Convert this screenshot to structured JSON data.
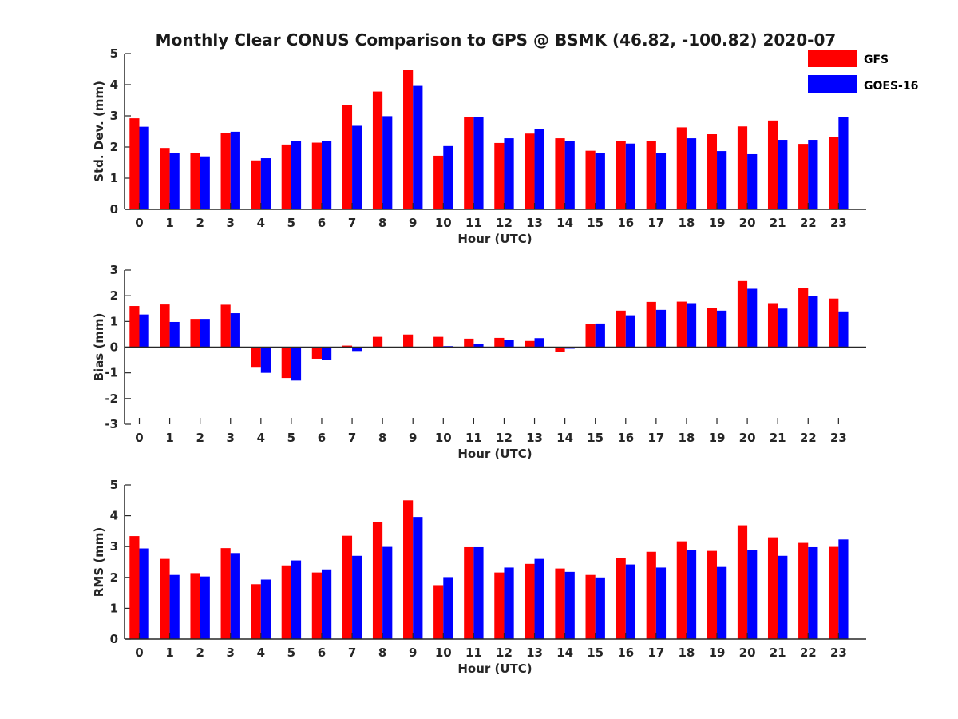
{
  "chart_data": [
    {
      "type": "bar",
      "title": "Monthly Clear CONUS Comparison to GPS @ BSMK (46.82, -100.82) 2020-07",
      "xlabel": "Hour (UTC)",
      "ylabel": "Std. Dev. (mm)",
      "ylim": [
        0,
        5
      ],
      "yticks": [
        "0",
        "1",
        "2",
        "3",
        "4",
        "5"
      ],
      "categories": [
        "0",
        "1",
        "2",
        "3",
        "4",
        "5",
        "6",
        "7",
        "8",
        "9",
        "10",
        "11",
        "12",
        "13",
        "14",
        "15",
        "16",
        "17",
        "18",
        "19",
        "20",
        "21",
        "22",
        "23"
      ],
      "series": [
        {
          "name": "GFS",
          "color": "#ff0000",
          "values": [
            2.92,
            1.97,
            1.8,
            2.45,
            1.57,
            2.08,
            2.14,
            3.35,
            3.78,
            4.47,
            1.72,
            2.97,
            2.13,
            2.43,
            2.28,
            1.88,
            2.2,
            2.2,
            2.63,
            2.41,
            2.66,
            2.85,
            2.1,
            2.31
          ]
        },
        {
          "name": "GOES-16",
          "color": "#0000ff",
          "values": [
            2.65,
            1.82,
            1.7,
            2.49,
            1.64,
            2.2,
            2.2,
            2.68,
            2.99,
            3.96,
            2.03,
            2.97,
            2.28,
            2.58,
            2.18,
            1.8,
            2.11,
            1.8,
            2.28,
            1.87,
            1.77,
            2.23,
            2.23,
            2.95
          ]
        }
      ]
    },
    {
      "type": "bar",
      "xlabel": "Hour (UTC)",
      "ylabel": "Bias (mm)",
      "ylim": [
        -3,
        3
      ],
      "yticks": [
        "-3",
        "-2",
        "-1",
        "0",
        "1",
        "2",
        "3"
      ],
      "categories": [
        "0",
        "1",
        "2",
        "3",
        "4",
        "5",
        "6",
        "7",
        "8",
        "9",
        "10",
        "11",
        "12",
        "13",
        "14",
        "15",
        "16",
        "17",
        "18",
        "19",
        "20",
        "21",
        "22",
        "23"
      ],
      "series": [
        {
          "name": "GFS",
          "color": "#ff0000",
          "values": [
            1.6,
            1.66,
            1.1,
            1.65,
            -0.8,
            -1.2,
            -0.45,
            0.06,
            0.4,
            0.49,
            0.4,
            0.33,
            0.36,
            0.24,
            -0.2,
            0.89,
            1.42,
            1.76,
            1.77,
            1.53,
            2.57,
            1.71,
            2.29,
            1.89
          ]
        },
        {
          "name": "GOES-16",
          "color": "#0000ff",
          "values": [
            1.27,
            0.98,
            1.1,
            1.32,
            -1.0,
            -1.3,
            -0.5,
            -0.15,
            0.0,
            -0.04,
            0.04,
            0.12,
            0.27,
            0.35,
            -0.06,
            0.92,
            1.24,
            1.45,
            1.71,
            1.42,
            2.27,
            1.5,
            2.0,
            1.39
          ]
        }
      ]
    },
    {
      "type": "bar",
      "xlabel": "Hour (UTC)",
      "ylabel": "RMS (mm)",
      "ylim": [
        0,
        5
      ],
      "yticks": [
        "0",
        "1",
        "2",
        "3",
        "4",
        "5"
      ],
      "categories": [
        "0",
        "1",
        "2",
        "3",
        "4",
        "5",
        "6",
        "7",
        "8",
        "9",
        "10",
        "11",
        "12",
        "13",
        "14",
        "15",
        "16",
        "17",
        "18",
        "19",
        "20",
        "21",
        "22",
        "23"
      ],
      "series": [
        {
          "name": "GFS",
          "color": "#ff0000",
          "values": [
            3.34,
            2.6,
            2.14,
            2.95,
            1.78,
            2.39,
            2.16,
            3.35,
            3.79,
            4.5,
            1.75,
            2.98,
            2.16,
            2.44,
            2.29,
            2.08,
            2.62,
            2.83,
            3.17,
            2.86,
            3.69,
            3.3,
            3.12,
            2.99
          ]
        },
        {
          "name": "GOES-16",
          "color": "#0000ff",
          "values": [
            2.94,
            2.08,
            2.03,
            2.79,
            1.93,
            2.55,
            2.26,
            2.7,
            2.99,
            3.96,
            2.01,
            2.98,
            2.32,
            2.6,
            2.18,
            2.0,
            2.42,
            2.32,
            2.88,
            2.34,
            2.89,
            2.7,
            2.98,
            3.23
          ]
        }
      ]
    }
  ],
  "legend": [
    {
      "label": "GFS",
      "color": "#ff0000"
    },
    {
      "label": "GOES-16",
      "color": "#0000ff"
    }
  ]
}
